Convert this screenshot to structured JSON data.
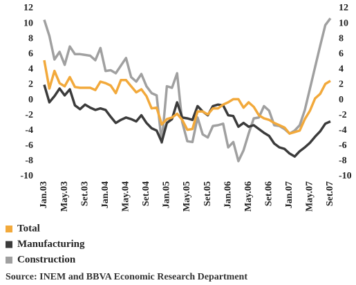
{
  "chart_data": {
    "type": "line",
    "categories": [
      "Jan.03",
      null,
      null,
      null,
      "May.03",
      null,
      null,
      null,
      "Set.03",
      null,
      null,
      null,
      "Jan.04",
      null,
      null,
      null,
      "May.04",
      null,
      null,
      null,
      "Set.04",
      null,
      null,
      null,
      "Jan.05",
      null,
      null,
      null,
      "May.05",
      null,
      null,
      null,
      "Set.05",
      null,
      null,
      null,
      "Jan.06",
      null,
      null,
      null,
      "May.06",
      null,
      null,
      null,
      "Set.06",
      null,
      null,
      null,
      "Jan.07",
      null,
      null,
      null,
      "May.07",
      null,
      null,
      null,
      "Set.07"
    ],
    "series": [
      {
        "name": "Total",
        "color": "#f2a93b",
        "values": [
          5.2,
          1.5,
          3.8,
          2.2,
          1.8,
          3,
          1.7,
          1.6,
          1.6,
          1.6,
          1.3,
          2.4,
          2.2,
          1.9,
          0.9,
          2.6,
          2.6,
          1.8,
          1,
          1.4,
          0.5,
          -1.1,
          -1,
          -3.2,
          -2.5,
          -2.3,
          -1.8,
          -2.6,
          -3.9,
          -3.8,
          -1.5,
          -1.5,
          -1.9,
          -1.1,
          -1.1,
          -0.6,
          -0.3,
          0.1,
          0.1,
          -1,
          -0.3,
          -0.9,
          -2,
          -2.4,
          -2.6,
          -3,
          -3.3,
          -3.6,
          -4.4,
          -4.2,
          -4,
          -2.5,
          -1.4,
          0.2,
          0.8,
          2.1,
          2.5
        ]
      },
      {
        "name": "Manufacturing",
        "color": "#3b3b3b",
        "values": [
          2,
          -0.3,
          0.5,
          1.5,
          0.6,
          1.4,
          -0.7,
          -1.2,
          -0.6,
          -1,
          -1.3,
          -1.1,
          -1.3,
          -2.2,
          -3,
          -2.6,
          -2.3,
          -2.5,
          -2.8,
          -2,
          -3,
          -3.7,
          -4,
          -5.5,
          -3,
          -2.5,
          -0.3,
          -2.3,
          -2.4,
          -2.6,
          -0.8,
          -1.5,
          -2,
          -0.8,
          -0.6,
          -0.7,
          -2,
          -2.1,
          -3.5,
          -3,
          -3.5,
          -3.3,
          -3.8,
          -4.3,
          -4.7,
          -5.7,
          -6.2,
          -6.4,
          -7,
          -7.4,
          -6.7,
          -6.2,
          -5.6,
          -4.8,
          -4.1,
          -3.1,
          -2.8
        ]
      },
      {
        "name": "Construction",
        "color": "#a0a0a0",
        "values": [
          10.5,
          8.4,
          5.3,
          6.3,
          4.6,
          7,
          6,
          6,
          5.9,
          5.8,
          5.2,
          6.8,
          3.8,
          3.9,
          3.5,
          4.5,
          5.5,
          3,
          2.4,
          3.4,
          1.8,
          0.9,
          0.6,
          -5.6,
          1.8,
          1.6,
          3.5,
          -2.9,
          -5.4,
          -5.5,
          -2.3,
          -4.5,
          -4.9,
          -3.4,
          -3.3,
          -3.1,
          -6.2,
          -5.5,
          -8,
          -6.6,
          -4.4,
          -2.4,
          -2.3,
          -0.8,
          -1.4,
          -3.3,
          -3.4,
          -3.8,
          -4.4,
          -4,
          -3.3,
          -1.3,
          1.5,
          4.3,
          7.1,
          9.8,
          10.7
        ]
      }
    ],
    "ylim": [
      -10,
      12
    ],
    "yticks": [
      -10,
      -8,
      -6,
      -4,
      -2,
      0,
      2,
      4,
      6,
      8,
      10,
      12
    ],
    "y2lim": [
      -10,
      12
    ],
    "y2ticks": [
      -10,
      -8,
      -6,
      -4,
      -2,
      0,
      2,
      4,
      6,
      8,
      10,
      12
    ],
    "source": "Source: INEM and BBVA Economic Research Department"
  }
}
